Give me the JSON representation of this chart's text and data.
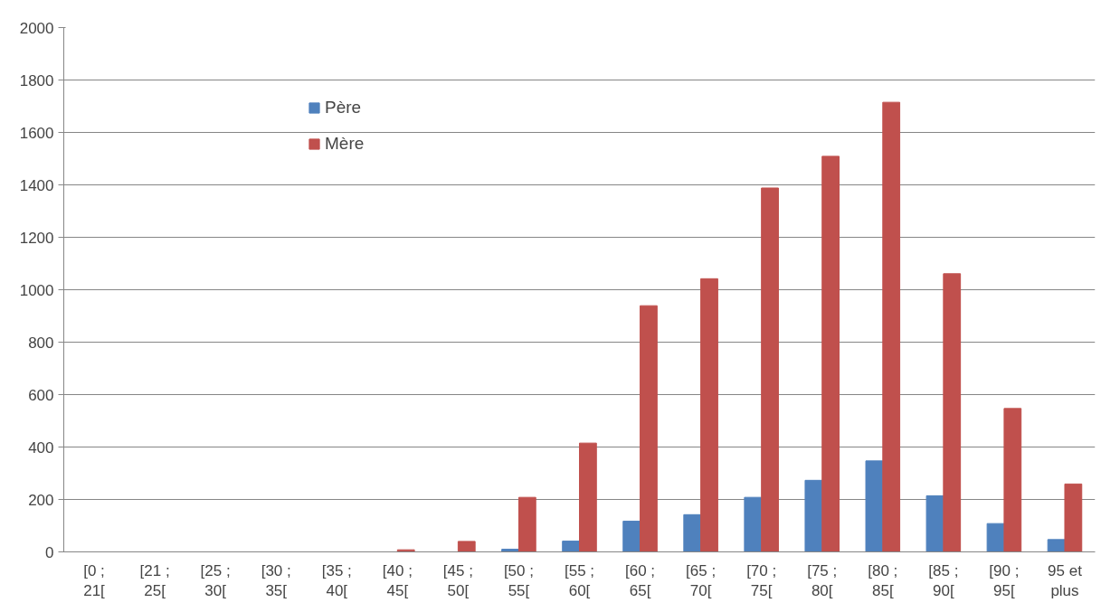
{
  "chart_data": {
    "type": "bar",
    "categories": [
      "[0 ; 21[",
      "[21 ; 25[",
      "[25 ; 30[",
      "[30 ; 35[",
      "[35 ; 40[",
      "[40 ; 45[",
      "[45 ; 50[",
      "[50 ; 55[",
      "[55 ; 60[",
      "[60 ; 65[",
      "[65 ; 70[",
      "[70 ; 75[",
      "[75 ; 80[",
      "[80 ; 85[",
      "[85 ; 90[",
      "[90 ; 95[",
      "95 et plus"
    ],
    "series": [
      {
        "name": "Père",
        "color": "#4f81bd",
        "values": [
          0,
          0,
          0,
          0,
          0,
          0,
          0,
          10,
          41,
          117,
          142,
          208,
          273,
          347,
          214,
          108,
          47
        ]
      },
      {
        "name": "Mère",
        "color": "#c0504d",
        "values": [
          0,
          0,
          0,
          0,
          0,
          8,
          40,
          208,
          415,
          939,
          1042,
          1388,
          1509,
          1715,
          1061,
          547,
          259
        ]
      }
    ],
    "ylim": [
      0,
      2000
    ],
    "yticks": [
      0,
      200,
      400,
      600,
      800,
      1000,
      1200,
      1400,
      1600,
      1800,
      2000
    ],
    "grid": "y",
    "legend": "top left"
  }
}
